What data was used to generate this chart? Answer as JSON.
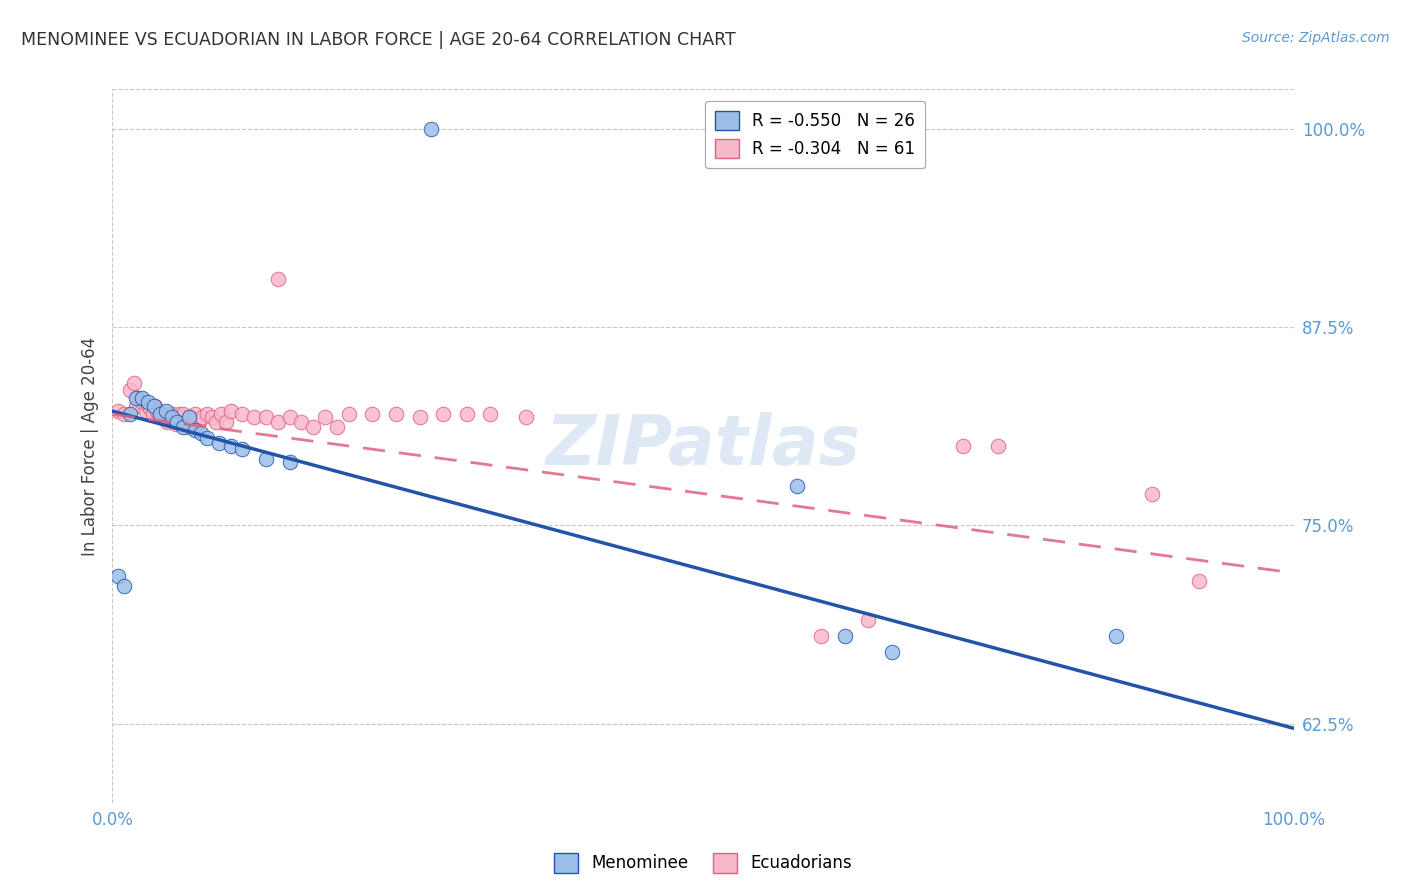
{
  "title": "MENOMINEE VS ECUADORIAN IN LABOR FORCE | AGE 20-64 CORRELATION CHART",
  "source": "Source: ZipAtlas.com",
  "ylabel": "In Labor Force | Age 20-64",
  "xlim": [
    0.0,
    1.0
  ],
  "ylim": [
    0.575,
    1.025
  ],
  "yticks": [
    0.625,
    0.75,
    0.875,
    1.0
  ],
  "ytick_labels": [
    "62.5%",
    "75.0%",
    "87.5%",
    "100.0%"
  ],
  "xticks": [
    0.0,
    1.0
  ],
  "xtick_labels": [
    "0.0%",
    "100.0%"
  ],
  "menominee_color": "#9bbfe8",
  "ecuadorian_color": "#f7b8ca",
  "trendline_menominee_color": "#2255aa",
  "trendline_ecuadorian_color": "#e06080",
  "watermark": "ZIPatlas",
  "menominee_x": [
    0.005,
    0.01,
    0.015,
    0.02,
    0.025,
    0.03,
    0.035,
    0.04,
    0.045,
    0.05,
    0.055,
    0.06,
    0.065,
    0.07,
    0.075,
    0.08,
    0.09,
    0.1,
    0.11,
    0.13,
    0.15,
    0.27,
    0.58,
    0.62,
    0.66,
    0.85
  ],
  "menominee_y": [
    0.718,
    0.712,
    0.82,
    0.83,
    0.83,
    0.828,
    0.825,
    0.82,
    0.822,
    0.818,
    0.815,
    0.812,
    0.818,
    0.81,
    0.808,
    0.805,
    0.802,
    0.8,
    0.798,
    0.792,
    0.79,
    1.0,
    0.775,
    0.68,
    0.67,
    0.68
  ],
  "ecuadorian_x": [
    0.005,
    0.01,
    0.015,
    0.018,
    0.02,
    0.022,
    0.025,
    0.028,
    0.03,
    0.032,
    0.034,
    0.036,
    0.038,
    0.04,
    0.042,
    0.044,
    0.046,
    0.048,
    0.05,
    0.052,
    0.054,
    0.056,
    0.058,
    0.06,
    0.062,
    0.064,
    0.066,
    0.068,
    0.07,
    0.073,
    0.076,
    0.08,
    0.084,
    0.088,
    0.092,
    0.096,
    0.1,
    0.11,
    0.12,
    0.13,
    0.14,
    0.15,
    0.16,
    0.17,
    0.18,
    0.19,
    0.2,
    0.22,
    0.24,
    0.26,
    0.28,
    0.3,
    0.32,
    0.35,
    0.14,
    0.6,
    0.64,
    0.72,
    0.75,
    0.88,
    0.92
  ],
  "ecuadorian_y": [
    0.822,
    0.82,
    0.835,
    0.84,
    0.825,
    0.83,
    0.828,
    0.822,
    0.826,
    0.824,
    0.82,
    0.825,
    0.822,
    0.82,
    0.818,
    0.82,
    0.815,
    0.818,
    0.82,
    0.816,
    0.814,
    0.82,
    0.818,
    0.82,
    0.815,
    0.812,
    0.818,
    0.815,
    0.82,
    0.815,
    0.818,
    0.82,
    0.818,
    0.815,
    0.82,
    0.815,
    0.822,
    0.82,
    0.818,
    0.818,
    0.815,
    0.818,
    0.815,
    0.812,
    0.818,
    0.812,
    0.82,
    0.82,
    0.82,
    0.818,
    0.82,
    0.82,
    0.82,
    0.818,
    0.905,
    0.68,
    0.69,
    0.8,
    0.8,
    0.77,
    0.715
  ],
  "background_color": "#ffffff",
  "grid_color": "#c8c8c8",
  "legend_label_men": "R = -0.550   N = 26",
  "legend_label_ecu": "R = -0.304   N = 61",
  "bottom_legend_men": "Menominee",
  "bottom_legend_ecu": "Ecuadorians",
  "men_trendline_x0": 0.0,
  "men_trendline_y0": 0.822,
  "men_trendline_x1": 1.0,
  "men_trendline_y1": 0.622,
  "ecu_trendline_x0": 0.0,
  "ecu_trendline_y0": 0.82,
  "ecu_trendline_x1": 1.0,
  "ecu_trendline_y1": 0.72
}
